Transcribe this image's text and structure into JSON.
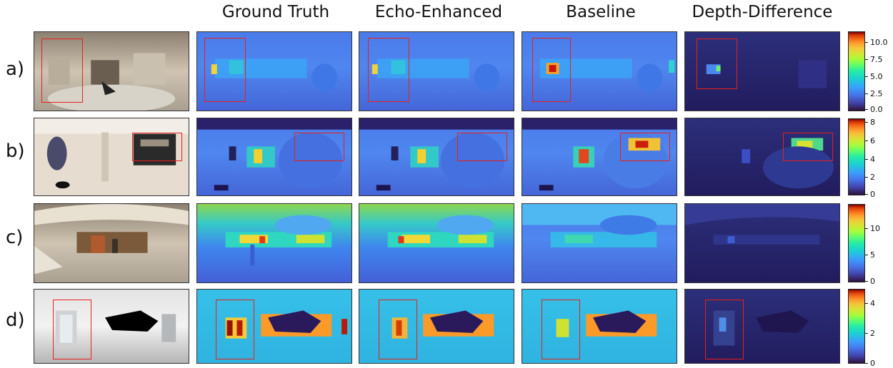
{
  "columns": [
    "Ground Truth",
    "Echo-Enhanced",
    "Baseline",
    "Depth-Difference"
  ],
  "rows": [
    {
      "label": "a)",
      "ticks": [
        "10.0",
        "7.5",
        "5.0",
        "2.5",
        "0.0"
      ]
    },
    {
      "label": "b)",
      "ticks": [
        "8",
        "6",
        "4",
        "2",
        "0"
      ]
    },
    {
      "label": "c)",
      "ticks": [
        "10",
        "5",
        "0"
      ]
    },
    {
      "label": "d)",
      "ticks": [
        "4",
        "2",
        "0"
      ]
    }
  ],
  "colors": {
    "highlight_box": "#e8201a"
  }
}
